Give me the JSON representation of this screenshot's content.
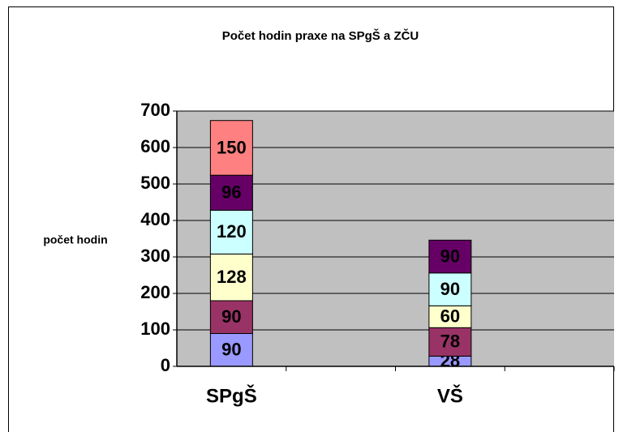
{
  "chart_data": {
    "type": "bar",
    "stacked": true,
    "title": "Počet hodin praxe na SPgŠ a ZČU",
    "y_label": "počet hodin",
    "categories": [
      "SPgŠ",
      null,
      "VŠ",
      null
    ],
    "series": [
      {
        "color": "#9999ff",
        "values": [
          90,
          null,
          28,
          null
        ]
      },
      {
        "color": "#993366",
        "values": [
          90,
          null,
          78,
          null
        ]
      },
      {
        "color": "#ffffcc",
        "values": [
          128,
          null,
          60,
          null
        ]
      },
      {
        "color": "#ccffff",
        "values": [
          120,
          null,
          90,
          null
        ]
      },
      {
        "color": "#660066",
        "values": [
          96,
          null,
          90,
          null
        ]
      },
      {
        "color": "#ff8080",
        "values": [
          150,
          null,
          null,
          null
        ]
      }
    ],
    "ylim": [
      0,
      700
    ],
    "yticks": [
      0,
      100,
      200,
      300,
      400,
      500,
      600,
      700
    ],
    "grid": true,
    "plot_background": "#c0c0c0"
  }
}
